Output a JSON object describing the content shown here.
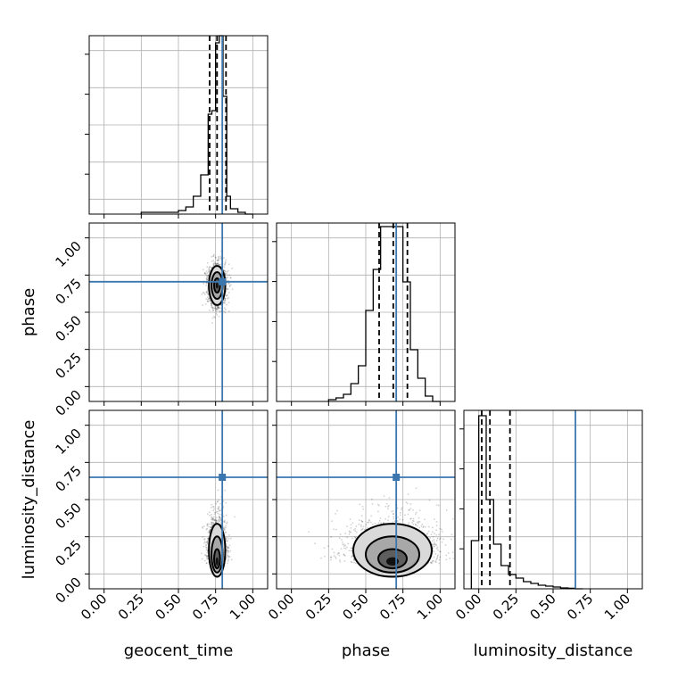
{
  "chart_data": {
    "type": "corner",
    "parameters": [
      "geocent_time",
      "phase",
      "luminosity_distance"
    ],
    "axis_range": [
      -0.1,
      1.1
    ],
    "tick_labels": [
      "0.00",
      "0.25",
      "0.50",
      "0.75",
      "1.00"
    ],
    "tick_values": [
      0.0,
      0.25,
      0.5,
      0.75,
      1.0
    ],
    "grid": true,
    "truth_color": "#3b76af",
    "truths": {
      "geocent_time": 0.795,
      "phase": 0.705,
      "luminosity_distance": 0.65
    },
    "quantiles": {
      "geocent_time": [
        0.71,
        0.76,
        0.82
      ],
      "phase": [
        0.59,
        0.685,
        0.78
      ],
      "luminosity_distance": [
        0.02,
        0.075,
        0.21
      ]
    },
    "histograms": [
      {
        "parameter": "geocent_time",
        "bin_edges": [
          0.25,
          0.3,
          0.35,
          0.4,
          0.45,
          0.5,
          0.55,
          0.6,
          0.65,
          0.7,
          0.725,
          0.75,
          0.775,
          0.8,
          0.825,
          0.85,
          0.9,
          0.95,
          1.0
        ],
        "counts": [
          0.01,
          0.01,
          0.01,
          0.01,
          0.01,
          0.02,
          0.04,
          0.1,
          0.22,
          0.56,
          0.58,
          0.96,
          1.0,
          0.66,
          0.1,
          0.03,
          0.01,
          0.0
        ],
        "ylim": [
          0,
          1.0
        ]
      },
      {
        "parameter": "phase",
        "bin_edges": [
          0.25,
          0.3,
          0.35,
          0.4,
          0.45,
          0.5,
          0.55,
          0.6,
          0.65,
          0.7,
          0.75,
          0.8,
          0.85,
          0.9,
          0.95,
          1.0
        ],
        "counts": [
          0.01,
          0.02,
          0.04,
          0.1,
          0.2,
          0.51,
          0.74,
          0.98,
          0.98,
          0.98,
          0.67,
          0.29,
          0.13,
          0.03,
          0.0
        ],
        "ylim": [
          0,
          1.0
        ]
      },
      {
        "parameter": "luminosity_distance",
        "bin_edges": [
          -0.05,
          0.0,
          0.05,
          0.1,
          0.15,
          0.2,
          0.25,
          0.3,
          0.35,
          0.4,
          0.45,
          0.5,
          0.55,
          0.6,
          0.65,
          0.7
        ],
        "counts": [
          0.27,
          0.97,
          0.5,
          0.25,
          0.13,
          0.08,
          0.06,
          0.04,
          0.03,
          0.02,
          0.015,
          0.01,
          0.005,
          0.003,
          0.0
        ],
        "ylim": [
          0,
          1.0
        ]
      }
    ],
    "contours_2d": [
      {
        "x": "geocent_time",
        "y": "phase",
        "center": [
          0.76,
          0.68
        ],
        "sigma": [
          0.025,
          0.06
        ],
        "contour_levels_sigma": [
          0.8,
          1.5,
          2.2
        ]
      },
      {
        "x": "geocent_time",
        "y": "luminosity_distance",
        "center": [
          0.76,
          0.07
        ],
        "sigma": [
          0.025,
          0.09
        ],
        "contour_levels_sigma": [
          0.8,
          1.5,
          2.2
        ]
      },
      {
        "x": "phase",
        "y": "luminosity_distance",
        "center": [
          0.68,
          0.07
        ],
        "sigma": [
          0.12,
          0.09
        ],
        "contour_levels_sigma": [
          0.8,
          1.5,
          2.2
        ]
      }
    ]
  }
}
